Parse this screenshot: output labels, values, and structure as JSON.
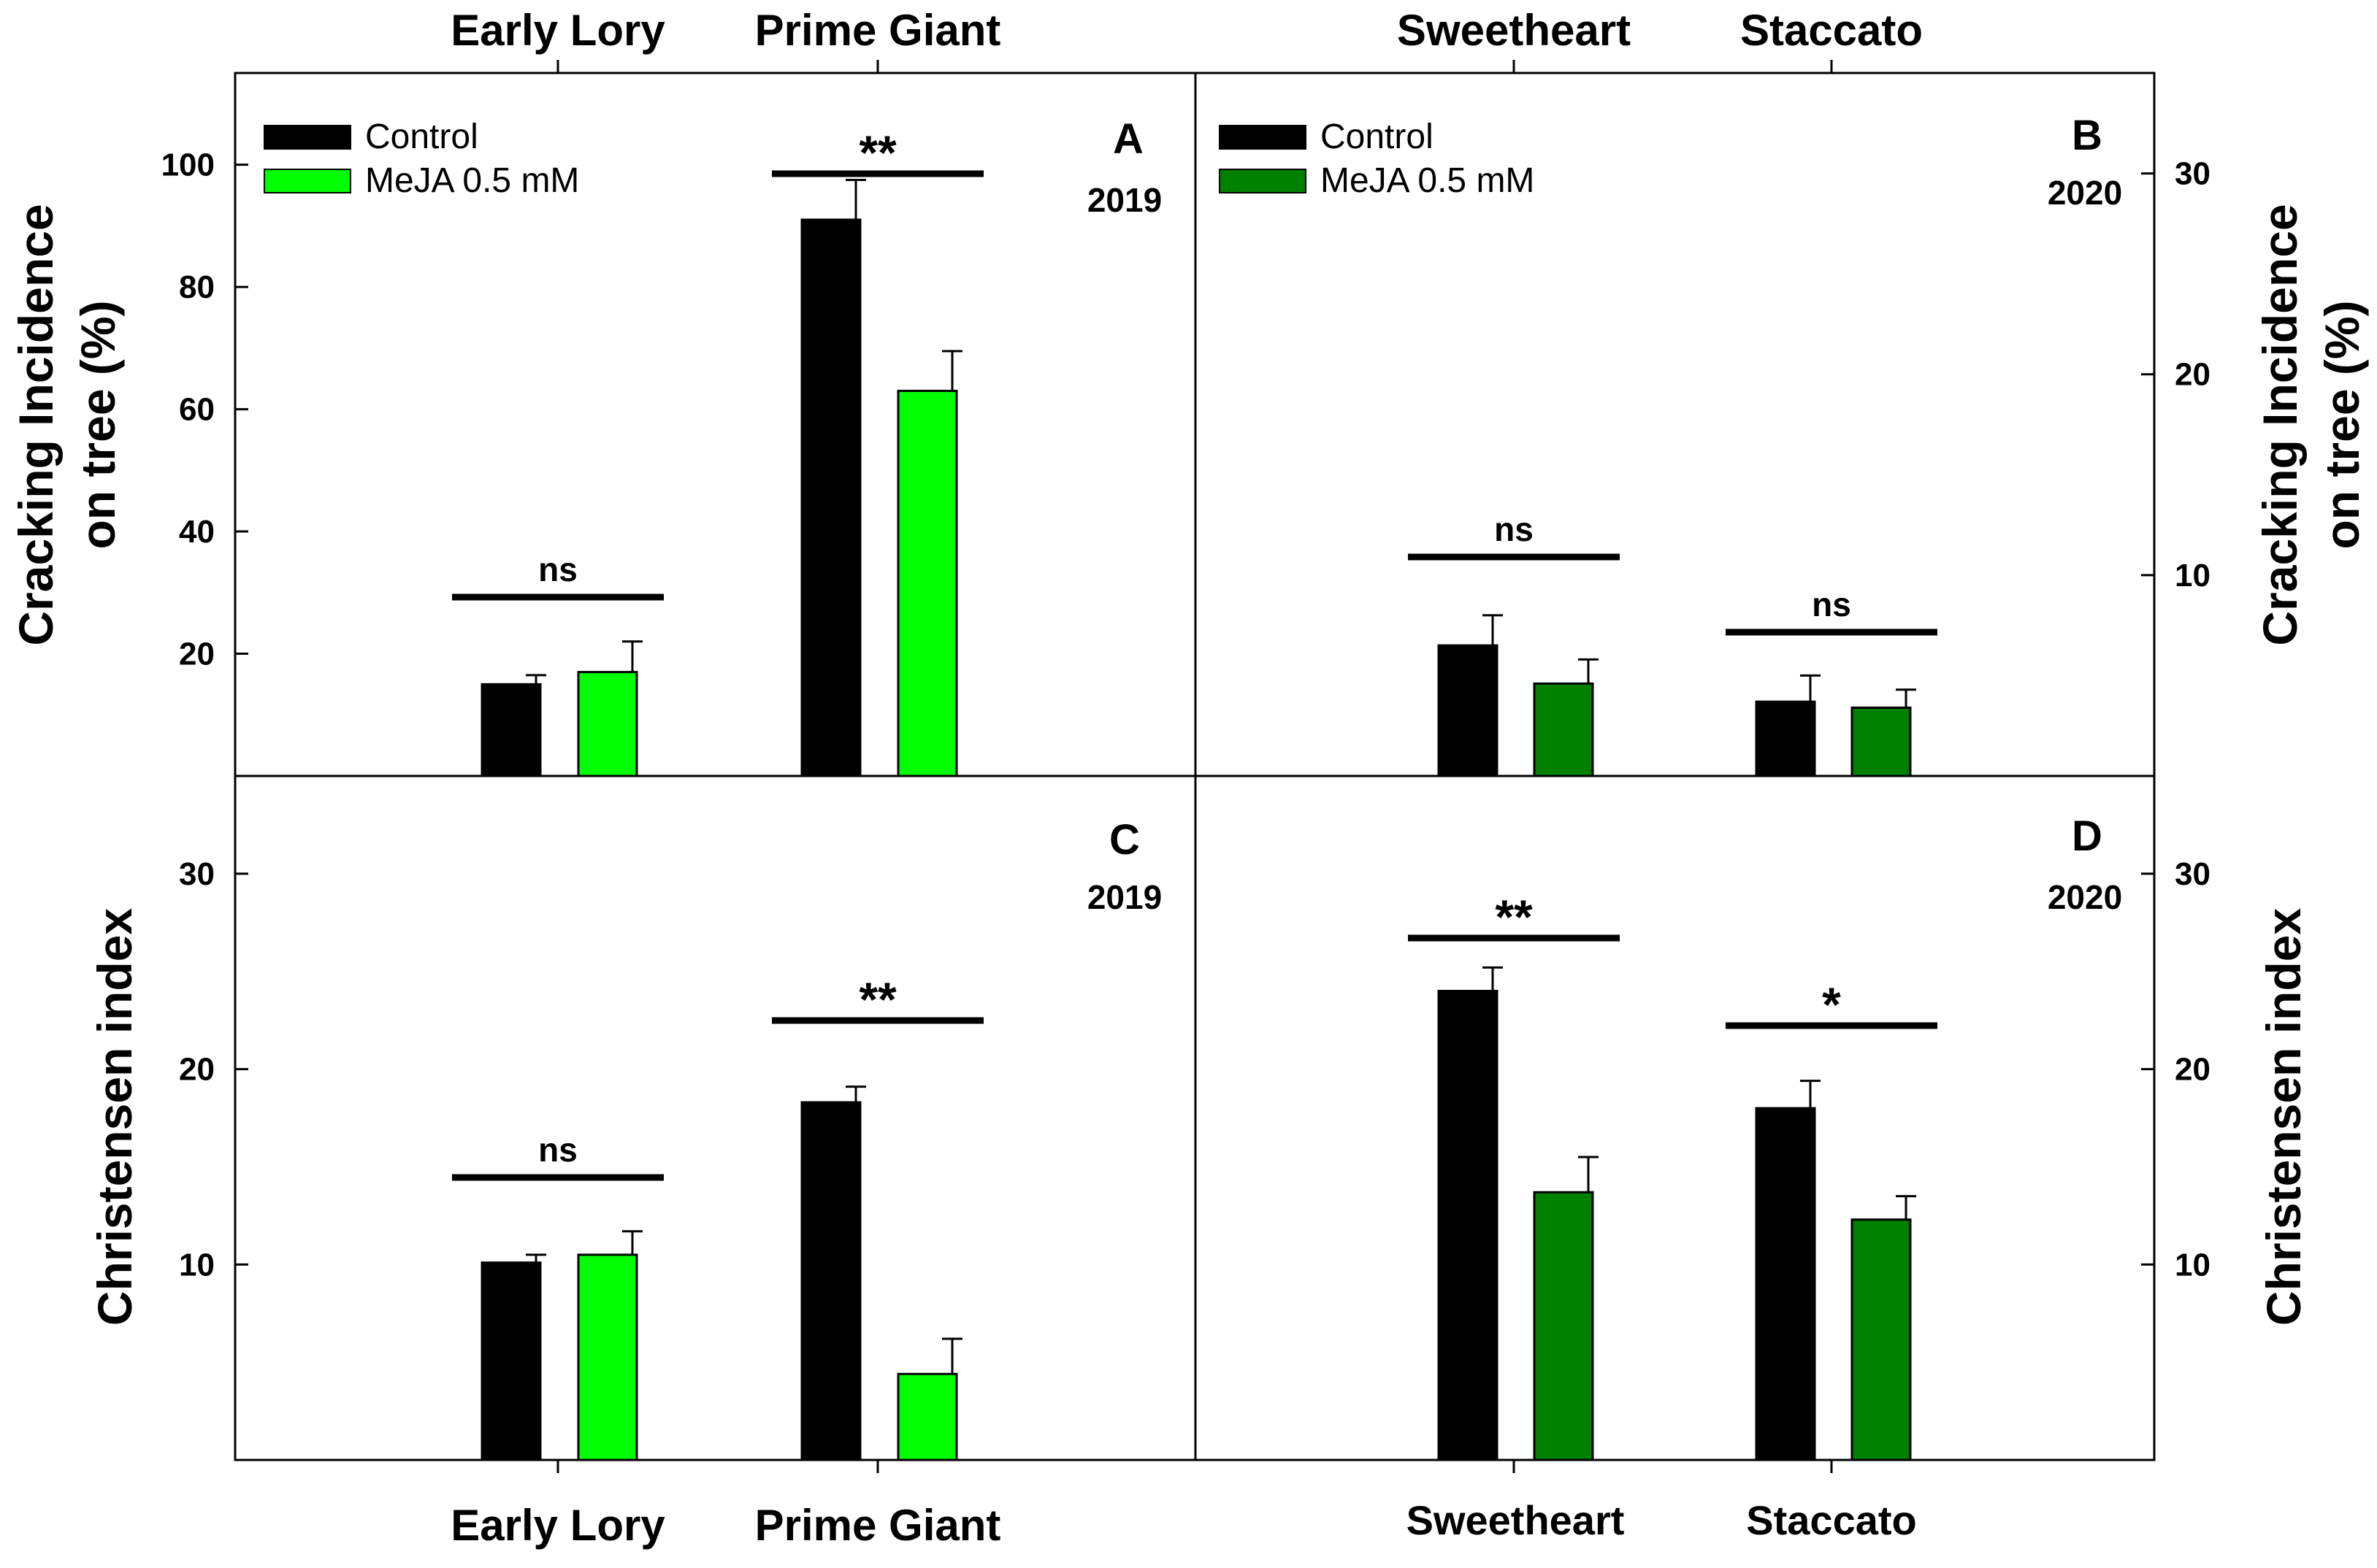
{
  "figure": {
    "top_categories_left": [
      "Early Lory",
      "Prime Giant"
    ],
    "top_categories_right": [
      "Sweetheart",
      "Staccato"
    ],
    "bottom_categories_left": [
      "Early Lory",
      "Prime Giant"
    ],
    "bottom_categories_right": [
      "Sweetheart",
      "Staccato"
    ],
    "ylabel_top_left": [
      "Cracking Incidence",
      "on tree (%)"
    ],
    "ylabel_top_right": [
      "Cracking Incidence",
      "on tree (%)"
    ],
    "ylabel_bottom_left": "Christensen index",
    "ylabel_bottom_right": "Christensen index"
  },
  "colors": {
    "control": "#000000",
    "meja_light": "#00ff00",
    "meja_dark": "#008000",
    "axis": "#000000",
    "background": "#ffffff"
  },
  "chart_data": [
    {
      "panel": "A",
      "year": "2019",
      "type": "bar",
      "categories": [
        "Early Lory",
        "Prime Giant"
      ],
      "ylim": [
        0,
        115
      ],
      "yticks": [
        20,
        40,
        60,
        80,
        100
      ],
      "legend": {
        "position": "top-left",
        "entries": [
          "Control",
          "MeJA 0.5 mM"
        ]
      },
      "series": [
        {
          "name": "Control",
          "color": "#000000",
          "values": [
            15,
            91
          ],
          "errors": [
            1.5,
            6.5
          ]
        },
        {
          "name": "MeJA 0.5 mM",
          "color": "#00ff00",
          "values": [
            17,
            63
          ],
          "errors": [
            5,
            6.5
          ]
        }
      ],
      "significance": [
        "ns",
        "**"
      ]
    },
    {
      "panel": "B",
      "year": "2020",
      "type": "bar",
      "categories": [
        "Sweetheart",
        "Staccato"
      ],
      "ylim": [
        0,
        35
      ],
      "yticks": [
        10,
        20,
        30
      ],
      "legend": {
        "position": "top-left",
        "entries": [
          "Control",
          "MeJA 0.5 mM"
        ]
      },
      "series": [
        {
          "name": "Control",
          "color": "#000000",
          "values": [
            6.5,
            3.7
          ],
          "errors": [
            1.5,
            1.3
          ]
        },
        {
          "name": "MeJA 0.5 mM",
          "color": "#008000",
          "values": [
            4.6,
            3.4
          ],
          "errors": [
            1.2,
            0.9
          ]
        }
      ],
      "significance": [
        "ns",
        "ns"
      ]
    },
    {
      "panel": "C",
      "year": "2019",
      "type": "bar",
      "categories": [
        "Early Lory",
        "Prime Giant"
      ],
      "ylim": [
        0,
        35
      ],
      "yticks": [
        10,
        20,
        30
      ],
      "series": [
        {
          "name": "Control",
          "color": "#000000",
          "values": [
            10.1,
            18.3
          ],
          "errors": [
            0.4,
            0.8
          ]
        },
        {
          "name": "MeJA 0.5 mM",
          "color": "#00ff00",
          "values": [
            10.5,
            4.4
          ],
          "errors": [
            1.2,
            1.8
          ]
        }
      ],
      "significance": [
        "ns",
        "**"
      ]
    },
    {
      "panel": "D",
      "year": "2020",
      "type": "bar",
      "categories": [
        "Sweetheart",
        "Staccato"
      ],
      "ylim": [
        0,
        35
      ],
      "yticks": [
        10,
        20,
        30
      ],
      "series": [
        {
          "name": "Control",
          "color": "#000000",
          "values": [
            24,
            18
          ],
          "errors": [
            1.2,
            1.4
          ]
        },
        {
          "name": "MeJA 0.5 mM",
          "color": "#008000",
          "values": [
            13.7,
            12.3
          ],
          "errors": [
            1.8,
            1.2
          ]
        }
      ],
      "significance": [
        "**",
        "*"
      ]
    }
  ]
}
